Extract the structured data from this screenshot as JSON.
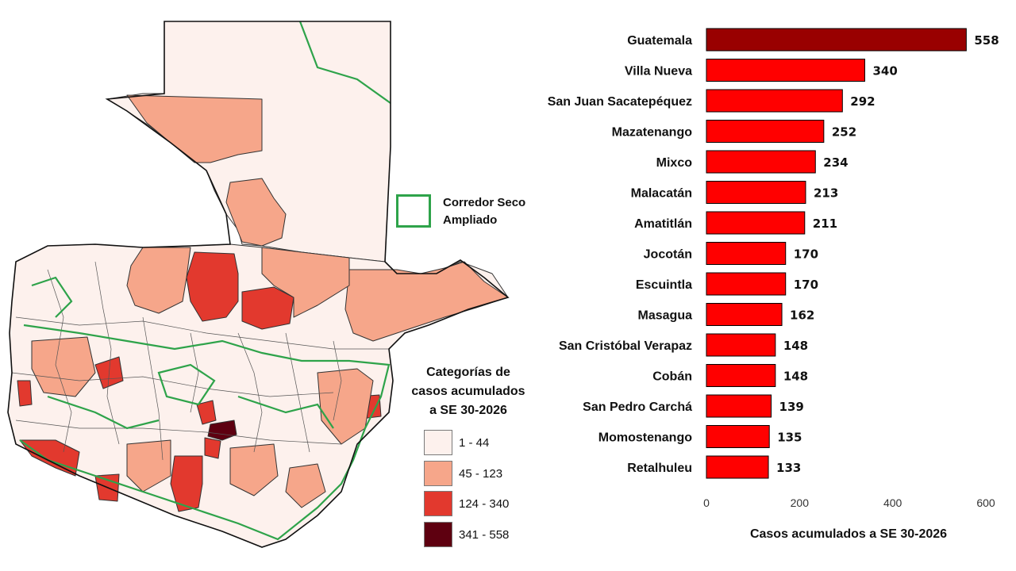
{
  "legend": {
    "title_lines": [
      "Categorías de",
      "casos acumulados",
      "a SE 30-2026"
    ],
    "items": [
      {
        "label": "1 - 44",
        "color": "#fdf1ed"
      },
      {
        "label": "45 - 123",
        "color": "#f6a68a"
      },
      {
        "label": "124 - 340",
        "color": "#e2392e"
      },
      {
        "label": "341 - 558",
        "color": "#5e0010"
      }
    ],
    "corredor_label_lines": [
      "Corredor Seco",
      "Ampliado"
    ],
    "corredor_color": "#2ea34a"
  },
  "chart_data": {
    "type": "bar",
    "orientation": "horizontal",
    "categories": [
      "Guatemala",
      "Villa Nueva",
      "San Juan Sacatepéquez",
      "Mazatenango",
      "Mixco",
      "Malacatán",
      "Amatitlán",
      "Jocotán",
      "Escuintla",
      "Masagua",
      "San Cristóbal Verapaz",
      "Cobán",
      "San Pedro Carchá",
      "Momostenango",
      "Retalhuleu"
    ],
    "values": [
      558,
      340,
      292,
      252,
      234,
      213,
      211,
      170,
      170,
      162,
      148,
      148,
      139,
      135,
      133
    ],
    "data_labels": [
      "558",
      "340",
      "292",
      "252",
      "234",
      "213",
      "211",
      "170",
      "170",
      "162",
      "148",
      "148",
      "139",
      "135",
      "133"
    ],
    "xlabel": "Casos acumulados a SE 30-2026",
    "xlim": [
      0,
      600
    ],
    "xticks": [
      0,
      200,
      400,
      600
    ],
    "xtick_labels": [
      "0",
      "200",
      "400",
      "600"
    ],
    "bar_colors": {
      "highlight": "#990000",
      "default": "#ff0000"
    },
    "grid": false
  }
}
